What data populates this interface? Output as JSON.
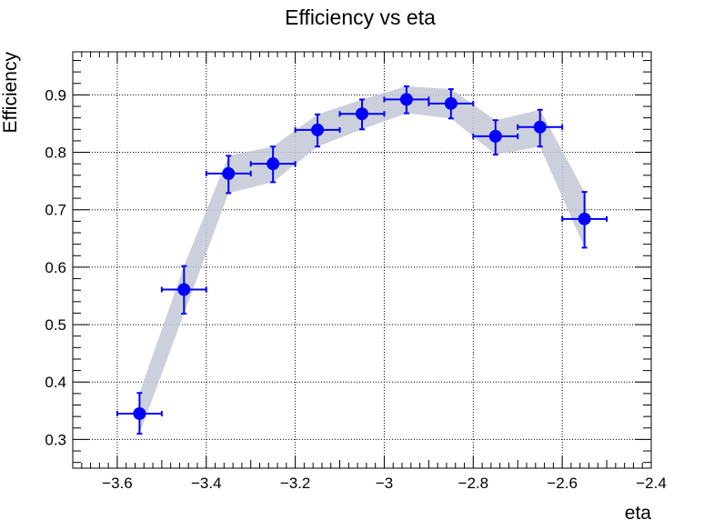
{
  "chart_data": {
    "type": "scatter",
    "title": "Efficiency vs eta",
    "xlabel": "eta",
    "ylabel": "Efficiency",
    "xlim": [
      -3.7,
      -2.4
    ],
    "ylim": [
      0.25,
      0.975
    ],
    "grid": true,
    "x_ticks": [
      -3.6,
      -3.4,
      -3.2,
      -3.0,
      -2.8,
      -2.6,
      -2.4
    ],
    "x_tick_labels": [
      "−3.6",
      "−3.4",
      "−3.2",
      "−3",
      "−2.8",
      "−2.6",
      "−2.4"
    ],
    "y_ticks": [
      0.3,
      0.4,
      0.5,
      0.6,
      0.7,
      0.8,
      0.9
    ],
    "y_tick_labels": [
      "0.3",
      "0.4",
      "0.5",
      "0.6",
      "0.7",
      "0.8",
      "0.9"
    ],
    "marker_color": "#0000ff",
    "band_color": "#c3c8d6",
    "points": [
      {
        "x": -3.55,
        "xerr": 0.05,
        "y": 0.345,
        "yerr_low": 0.035,
        "yerr_high": 0.036
      },
      {
        "x": -3.45,
        "xerr": 0.05,
        "y": 0.561,
        "yerr_low": 0.042,
        "yerr_high": 0.041
      },
      {
        "x": -3.35,
        "xerr": 0.05,
        "y": 0.763,
        "yerr_low": 0.034,
        "yerr_high": 0.031
      },
      {
        "x": -3.25,
        "xerr": 0.05,
        "y": 0.78,
        "yerr_low": 0.032,
        "yerr_high": 0.03
      },
      {
        "x": -3.15,
        "xerr": 0.05,
        "y": 0.839,
        "yerr_low": 0.029,
        "yerr_high": 0.027
      },
      {
        "x": -3.05,
        "xerr": 0.05,
        "y": 0.867,
        "yerr_low": 0.027,
        "yerr_high": 0.025
      },
      {
        "x": -2.95,
        "xerr": 0.05,
        "y": 0.892,
        "yerr_low": 0.024,
        "yerr_high": 0.023
      },
      {
        "x": -2.85,
        "xerr": 0.05,
        "y": 0.885,
        "yerr_low": 0.026,
        "yerr_high": 0.025
      },
      {
        "x": -2.75,
        "xerr": 0.05,
        "y": 0.828,
        "yerr_low": 0.032,
        "yerr_high": 0.028
      },
      {
        "x": -2.65,
        "xerr": 0.05,
        "y": 0.844,
        "yerr_low": 0.034,
        "yerr_high": 0.03
      },
      {
        "x": -2.55,
        "xerr": 0.05,
        "y": 0.684,
        "yerr_low": 0.05,
        "yerr_high": 0.047
      }
    ]
  }
}
